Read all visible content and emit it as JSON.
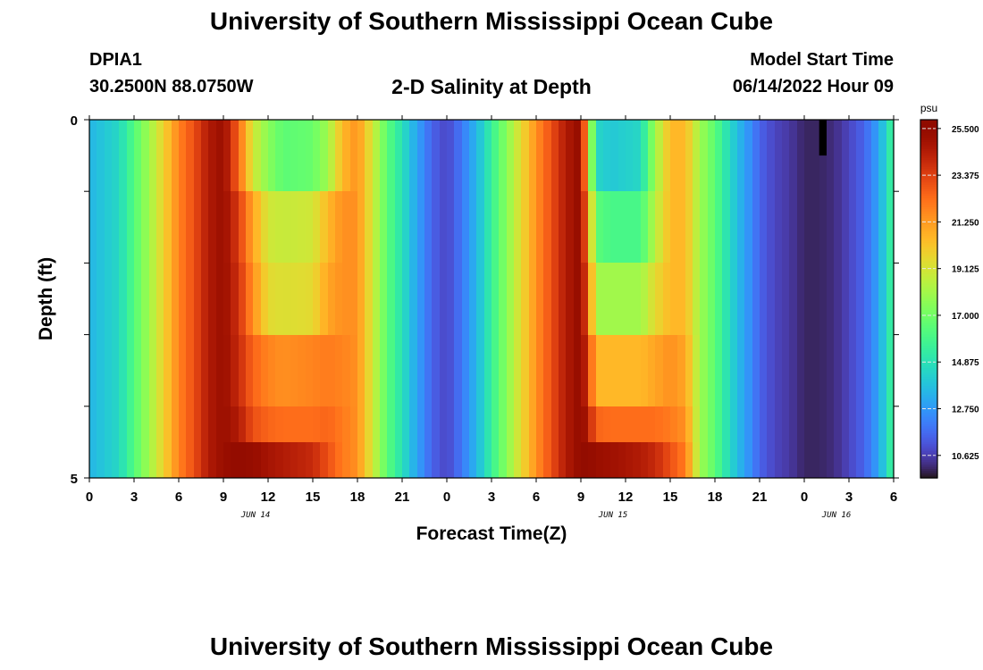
{
  "header": {
    "title": "University of Southern Mississippi Ocean Cube",
    "station_id": "DPIA1",
    "station_coords": "30.2500N  88.0750W",
    "chart_title": "2-D Salinity at Depth",
    "model_start_label": "Model Start Time",
    "model_start_value": "06/14/2022 Hour 09"
  },
  "footer": {
    "title": "University of Southern Mississippi Ocean Cube"
  },
  "chart_data": {
    "type": "heatmap",
    "title": "2-D Salinity at Depth",
    "xlabel": "Forecast Time(Z)",
    "ylabel": "Depth (ft)",
    "x_unit": "hours since 2022-06-14 00Z",
    "xlim": [
      0,
      54
    ],
    "ylim": [
      0,
      5
    ],
    "x_tick_hours": [
      0,
      3,
      6,
      9,
      12,
      15,
      18,
      21,
      24,
      27,
      30,
      33,
      36,
      39,
      42,
      45,
      48,
      51,
      54
    ],
    "x_tick_labels": [
      "0",
      "3",
      "6",
      "9",
      "12",
      "15",
      "18",
      "21",
      "0",
      "3",
      "6",
      "9",
      "12",
      "15",
      "18",
      "21",
      "0",
      "3",
      "6"
    ],
    "date_labels": [
      {
        "hour": 12,
        "text": "JUN 14"
      },
      {
        "hour": 36,
        "text": "JUN 15"
      },
      {
        "hour": 51,
        "text": "JUN 16"
      }
    ],
    "y_tick_values": [
      0,
      1,
      2,
      3,
      4,
      5
    ],
    "y_tick_labels": [
      "0",
      "",
      "",
      "",
      "",
      "5"
    ],
    "colorbar": {
      "unit": "psu",
      "min": 9.6,
      "max": 25.9,
      "tick_values": [
        25.5,
        23.375,
        21.25,
        19.125,
        17.0,
        14.875,
        12.75,
        10.625
      ],
      "tick_labels": [
        "25.500",
        "23.375",
        "21.250",
        "19.125",
        "17.000",
        "14.875",
        "12.750",
        "10.625"
      ],
      "colormap": "turbo"
    },
    "depth_layers": [
      0,
      1,
      2,
      3,
      4,
      4.5
    ],
    "time_step_hours": 0.5,
    "profile_keypoints": {
      "hours": [
        0,
        2,
        3,
        4,
        5,
        6,
        7,
        8,
        9,
        10,
        11,
        12,
        13,
        15,
        16,
        17,
        18,
        19,
        20,
        21,
        22,
        23,
        24,
        25,
        26,
        27,
        28,
        29,
        30,
        31,
        32,
        33,
        33.5,
        34,
        35,
        37,
        38,
        39,
        40,
        41,
        42,
        43,
        44,
        45,
        46,
        47,
        48,
        49,
        50,
        51,
        52,
        53,
        54
      ],
      "layer_values": [
        [
          13.5,
          14.5,
          16.3,
          18.0,
          19.8,
          21.8,
          23.0,
          24.5,
          25.2,
          22.5,
          19.0,
          17.5,
          16.5,
          16.8,
          18.0,
          20.5,
          21.5,
          19.0,
          16.5,
          14.8,
          13.0,
          11.5,
          10.8,
          12.0,
          13.5,
          15.5,
          17.5,
          19.5,
          21.5,
          23.0,
          24.5,
          25.5,
          20.0,
          14.5,
          14.0,
          14.5,
          18.0,
          20.5,
          20.5,
          18.0,
          16.5,
          14.5,
          13.0,
          11.5,
          10.8,
          10.5,
          10.0,
          10.0,
          10.2,
          10.8,
          11.5,
          13.0,
          16.0
        ],
        [
          13.5,
          14.5,
          16.3,
          18.0,
          19.8,
          21.8,
          23.0,
          24.5,
          25.2,
          23.5,
          21.0,
          19.0,
          18.8,
          19.0,
          20.5,
          21.5,
          21.5,
          19.0,
          16.5,
          14.8,
          13.0,
          11.5,
          10.8,
          12.0,
          13.5,
          15.5,
          17.5,
          19.5,
          21.5,
          23.0,
          24.5,
          25.5,
          21.5,
          16.5,
          16.0,
          16.0,
          18.5,
          20.5,
          20.5,
          18.0,
          16.5,
          14.5,
          13.0,
          11.5,
          10.8,
          10.5,
          10.0,
          10.0,
          10.2,
          10.8,
          11.5,
          13.0,
          16.0
        ],
        [
          13.5,
          14.5,
          16.3,
          18.0,
          19.8,
          21.8,
          23.0,
          24.5,
          25.2,
          23.8,
          21.5,
          19.5,
          19.3,
          19.5,
          21.0,
          21.5,
          21.5,
          19.0,
          16.5,
          14.8,
          13.0,
          11.5,
          10.8,
          12.0,
          13.5,
          15.5,
          17.5,
          19.5,
          21.5,
          23.0,
          24.5,
          25.5,
          22.5,
          18.0,
          18.0,
          18.0,
          19.5,
          20.5,
          20.5,
          18.0,
          16.5,
          14.5,
          13.0,
          11.5,
          10.8,
          10.5,
          10.0,
          10.0,
          10.2,
          10.8,
          11.5,
          13.0,
          16.0
        ],
        [
          13.5,
          14.5,
          16.3,
          18.0,
          19.8,
          21.8,
          23.0,
          24.5,
          25.2,
          24.0,
          22.5,
          21.8,
          21.5,
          21.8,
          22.0,
          21.8,
          21.5,
          19.0,
          16.5,
          14.8,
          13.0,
          11.5,
          10.8,
          12.0,
          13.5,
          15.5,
          17.5,
          19.5,
          21.5,
          23.0,
          24.5,
          25.5,
          23.5,
          20.5,
          20.5,
          20.5,
          21.0,
          21.5,
          21.0,
          18.0,
          16.5,
          14.5,
          13.0,
          11.5,
          10.8,
          10.5,
          10.0,
          10.0,
          10.2,
          10.8,
          11.5,
          13.0,
          16.0
        ],
        [
          13.5,
          14.5,
          16.3,
          18.0,
          19.8,
          21.8,
          23.0,
          24.5,
          25.2,
          24.5,
          23.0,
          22.5,
          22.3,
          22.3,
          22.5,
          22.0,
          21.5,
          19.0,
          16.5,
          14.8,
          13.0,
          11.5,
          10.8,
          12.0,
          13.5,
          15.5,
          17.5,
          19.5,
          21.5,
          23.0,
          24.5,
          25.5,
          24.5,
          22.5,
          22.3,
          22.3,
          22.3,
          22.0,
          21.5,
          18.0,
          16.5,
          14.5,
          13.0,
          11.5,
          10.8,
          10.5,
          10.0,
          10.0,
          10.2,
          10.8,
          11.5,
          13.0,
          16.0
        ],
        [
          13.5,
          14.5,
          16.3,
          18.0,
          19.8,
          21.8,
          23.0,
          24.5,
          25.2,
          25.5,
          25.3,
          24.8,
          24.5,
          24.0,
          23.0,
          22.0,
          21.5,
          19.0,
          16.5,
          14.8,
          13.0,
          11.5,
          10.8,
          12.0,
          13.5,
          15.5,
          17.5,
          19.5,
          21.5,
          23.0,
          24.5,
          25.5,
          25.5,
          25.2,
          25.0,
          24.5,
          24.0,
          23.0,
          22.0,
          18.0,
          16.5,
          14.5,
          13.0,
          11.5,
          10.8,
          10.5,
          10.0,
          10.0,
          10.2,
          10.8,
          11.5,
          13.0,
          16.0
        ]
      ]
    },
    "annotations": [
      {
        "type": "missing-data-cell",
        "hour_start": 49.0,
        "hour_end": 49.5,
        "depth_start": 0,
        "depth_end": 0.5
      }
    ]
  }
}
